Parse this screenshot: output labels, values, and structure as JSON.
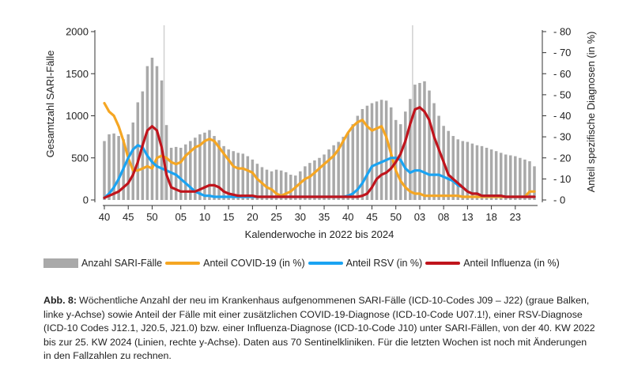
{
  "chart_data": {
    "type": "bar+line",
    "xlabel": "Kalenderwoche in 2022 bis 2024",
    "ylabel_left": "Gesamtzahl SARI-Fälle",
    "ylabel_right": "Anteil spezifische Diagnosen (in %)",
    "ylim_left": [
      0,
      2000
    ],
    "ylim_right": [
      0,
      80
    ],
    "yticks_left": [
      0,
      500,
      1000,
      1500,
      2000
    ],
    "yticks_right": [
      0,
      10,
      20,
      30,
      40,
      50,
      60,
      70,
      80
    ],
    "xtick_labels": [
      "40",
      "45",
      "50",
      "05",
      "10",
      "15",
      "20",
      "25",
      "30",
      "35",
      "40",
      "45",
      "50",
      "03",
      "08",
      "13",
      "18",
      "23"
    ],
    "xtick_positions": [
      0,
      5,
      10,
      16,
      21,
      26,
      31,
      36,
      41,
      46,
      51,
      56,
      61,
      66,
      71,
      76,
      81,
      86
    ],
    "year_boundaries": [
      12.5,
      64.5
    ],
    "week_index_note": "index 0 = KW 40/2022 ... index 90 = KW 25/2024",
    "bars": {
      "name": "Anzahl SARI-Fälle",
      "color": "#a9a9a9",
      "values": [
        700,
        780,
        790,
        760,
        720,
        780,
        920,
        1160,
        1290,
        1590,
        1690,
        1590,
        1420,
        890,
        620,
        630,
        620,
        660,
        700,
        740,
        780,
        800,
        830,
        760,
        710,
        640,
        600,
        580,
        560,
        550,
        520,
        480,
        430,
        390,
        360,
        340,
        360,
        350,
        330,
        300,
        290,
        340,
        400,
        440,
        470,
        500,
        540,
        600,
        650,
        690,
        750,
        800,
        900,
        1000,
        1080,
        1120,
        1150,
        1170,
        1190,
        1180,
        1100,
        950,
        900,
        1050,
        1200,
        1370,
        1390,
        1410,
        1300,
        1150,
        1000,
        880,
        820,
        760,
        720,
        700,
        690,
        670,
        650,
        640,
        620,
        600,
        580,
        560,
        540,
        530,
        520,
        500,
        480,
        460,
        400
      ]
    },
    "series": [
      {
        "name": "Anteil COVID-19 (in %)",
        "color": "#F5A623",
        "values": [
          46,
          42,
          40,
          35,
          28,
          20,
          14,
          14,
          15,
          16,
          15,
          20,
          21,
          20,
          18,
          17,
          18,
          21,
          23,
          25,
          26,
          28,
          29,
          28,
          25,
          22,
          19,
          16,
          15,
          15,
          14,
          13,
          10,
          8,
          6,
          5,
          3,
          2,
          3,
          4,
          6,
          8,
          10,
          11,
          13,
          15,
          17,
          19,
          21,
          24,
          28,
          32,
          35,
          37,
          38,
          35,
          33,
          34,
          35,
          30,
          22,
          14,
          9,
          6,
          4,
          3,
          3,
          2,
          2,
          2,
          2,
          2,
          2,
          2,
          2,
          1.5,
          1.5,
          1.5,
          1.5,
          1.5,
          1.5,
          1.5,
          1.5,
          1.5,
          1.5,
          1.5,
          1.5,
          1.5,
          1.5,
          4,
          4
        ]
      },
      {
        "name": "Anteil RSV (in %)",
        "color": "#1AA3F2",
        "values": [
          1,
          3,
          6,
          10,
          15,
          20,
          24,
          26,
          25,
          21,
          18,
          16,
          15,
          14,
          13,
          12,
          10,
          8,
          6,
          4,
          3,
          2,
          2,
          1.5,
          1.5,
          1.5,
          1.5,
          1.5,
          1.5,
          1.5,
          1.5,
          1.5,
          1.5,
          1.5,
          1.5,
          1.5,
          1.5,
          1.5,
          1.5,
          1.5,
          1.5,
          1.5,
          1.5,
          1.5,
          1.5,
          1.5,
          1.5,
          1.5,
          1.5,
          1.5,
          1.5,
          2,
          3,
          5,
          8,
          12,
          16,
          17,
          18,
          19,
          20,
          20,
          19,
          15,
          13,
          14,
          14,
          13,
          12,
          12,
          12,
          11,
          10,
          9,
          7,
          6,
          4,
          3,
          3,
          2,
          2,
          2,
          2,
          2,
          1.5,
          1.5,
          1.5,
          1.5,
          1.5,
          1.5,
          1.5
        ]
      },
      {
        "name": "Anteil Influenza (in %)",
        "color": "#C0141C",
        "values": [
          1,
          2,
          3,
          4,
          6,
          8,
          12,
          18,
          26,
          33,
          35,
          33,
          25,
          12,
          6,
          5,
          4,
          4,
          4,
          4,
          5,
          6,
          7,
          7,
          6,
          4,
          3,
          2.5,
          2,
          2,
          2,
          2,
          1.5,
          1.5,
          1.5,
          1.5,
          1.5,
          1.5,
          1.5,
          1.5,
          1.5,
          1.5,
          1.5,
          1.5,
          1.5,
          1.5,
          1.5,
          1.5,
          1.5,
          1.5,
          1.5,
          1.5,
          1.5,
          1.5,
          2,
          3,
          6,
          10,
          12,
          13,
          15,
          18,
          22,
          28,
          36,
          43,
          44,
          42,
          38,
          30,
          24,
          18,
          12,
          10,
          8,
          6,
          4,
          3,
          3,
          2,
          2,
          2,
          2,
          2,
          1.5,
          1.5,
          1.5,
          1.5,
          1.5,
          1.5,
          1.5
        ]
      }
    ]
  },
  "caption": {
    "label": "Abb. 8:",
    "text": "Wöchentliche Anzahl der neu im Krankenhaus aufgenommenen SARI-Fälle (ICD-10-Codes J09 – J22) (graue Balken, linke y-Achse) sowie Anteil der Fälle mit einer zusätzlichen COVID-19-Diagnose (ICD-10-Code U07.1!), einer RSV-Diagnose (ICD-10 Codes J12.1, J20.5, J21.0) bzw. einer Influenza-Diagnose (ICD-10-Code J10) unter SARI-Fällen, von der 40. KW 2022 bis zur 25. KW 2024 (Linien, rechte y-Achse). Daten aus 70 Sentinelkliniken. Für die letzten Wochen ist noch mit Änderungen in den Fallzahlen zu rechnen."
  }
}
